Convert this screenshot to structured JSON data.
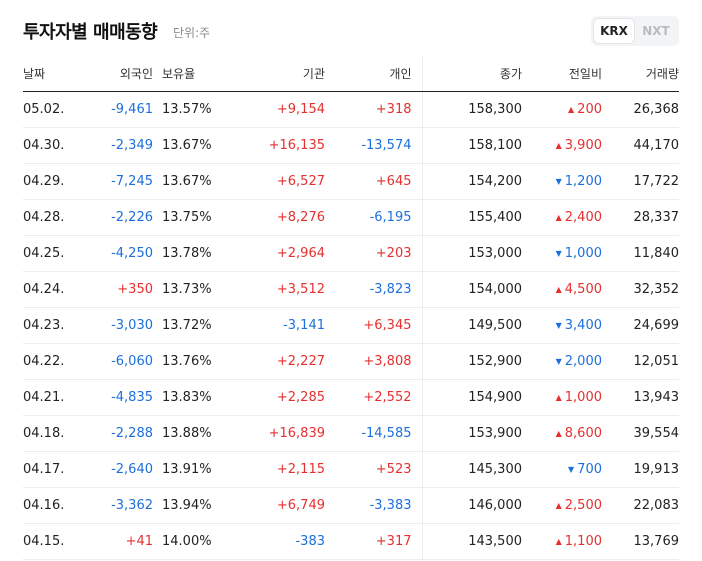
{
  "header": {
    "title": "투자자별 매매동향",
    "unit": "단위:주",
    "markets": [
      "KRX",
      "NXT"
    ],
    "selected_market": "KRX"
  },
  "columns": [
    "날짜",
    "외국인",
    "보유율",
    "기관",
    "개인",
    "종가",
    "전일비",
    "거래량"
  ],
  "colors": {
    "up": "#e5302f",
    "down": "#1c6fdc"
  },
  "rows": [
    {
      "date": "05.02.",
      "foreign": "-9,461",
      "hold": "13.57%",
      "inst": "+9,154",
      "indiv": "+318",
      "close": "158,300",
      "change": "200",
      "dir": "up",
      "volume": "26,368"
    },
    {
      "date": "04.30.",
      "foreign": "-2,349",
      "hold": "13.67%",
      "inst": "+16,135",
      "indiv": "-13,574",
      "close": "158,100",
      "change": "3,900",
      "dir": "up",
      "volume": "44,170"
    },
    {
      "date": "04.29.",
      "foreign": "-7,245",
      "hold": "13.67%",
      "inst": "+6,527",
      "indiv": "+645",
      "close": "154,200",
      "change": "1,200",
      "dir": "down",
      "volume": "17,722"
    },
    {
      "date": "04.28.",
      "foreign": "-2,226",
      "hold": "13.75%",
      "inst": "+8,276",
      "indiv": "-6,195",
      "close": "155,400",
      "change": "2,400",
      "dir": "up",
      "volume": "28,337"
    },
    {
      "date": "04.25.",
      "foreign": "-4,250",
      "hold": "13.78%",
      "inst": "+2,964",
      "indiv": "+203",
      "close": "153,000",
      "change": "1,000",
      "dir": "down",
      "volume": "11,840"
    },
    {
      "date": "04.24.",
      "foreign": "+350",
      "hold": "13.73%",
      "inst": "+3,512",
      "indiv": "-3,823",
      "close": "154,000",
      "change": "4,500",
      "dir": "up",
      "volume": "32,352"
    },
    {
      "date": "04.23.",
      "foreign": "-3,030",
      "hold": "13.72%",
      "inst": "-3,141",
      "indiv": "+6,345",
      "close": "149,500",
      "change": "3,400",
      "dir": "down",
      "volume": "24,699"
    },
    {
      "date": "04.22.",
      "foreign": "-6,060",
      "hold": "13.76%",
      "inst": "+2,227",
      "indiv": "+3,808",
      "close": "152,900",
      "change": "2,000",
      "dir": "down",
      "volume": "12,051"
    },
    {
      "date": "04.21.",
      "foreign": "-4,835",
      "hold": "13.83%",
      "inst": "+2,285",
      "indiv": "+2,552",
      "close": "154,900",
      "change": "1,000",
      "dir": "up",
      "volume": "13,943"
    },
    {
      "date": "04.18.",
      "foreign": "-2,288",
      "hold": "13.88%",
      "inst": "+16,839",
      "indiv": "-14,585",
      "close": "153,900",
      "change": "8,600",
      "dir": "up",
      "volume": "39,554"
    },
    {
      "date": "04.17.",
      "foreign": "-2,640",
      "hold": "13.91%",
      "inst": "+2,115",
      "indiv": "+523",
      "close": "145,300",
      "change": "700",
      "dir": "down",
      "volume": "19,913"
    },
    {
      "date": "04.16.",
      "foreign": "-3,362",
      "hold": "13.94%",
      "inst": "+6,749",
      "indiv": "-3,383",
      "close": "146,000",
      "change": "2,500",
      "dir": "up",
      "volume": "22,083"
    },
    {
      "date": "04.15.",
      "foreign": "+41",
      "hold": "14.00%",
      "inst": "-383",
      "indiv": "+317",
      "close": "143,500",
      "change": "1,100",
      "dir": "up",
      "volume": "13,769"
    }
  ]
}
